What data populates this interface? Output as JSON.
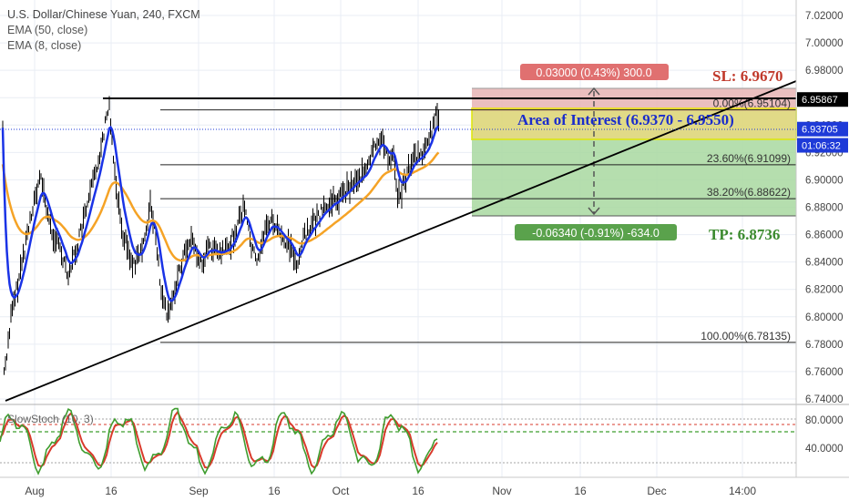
{
  "header": {
    "symbol_line": "U.S. Dollar/Chinese Yuan, 240, FXCM",
    "indicator_1": "EMA (50, close)",
    "indicator_2": "EMA (8, close)"
  },
  "price_axis": {
    "labels": [
      "7.02000",
      "7.00000",
      "6.98000",
      "6.96000",
      "6.94000",
      "6.92000",
      "6.90000",
      "6.88000",
      "6.86000",
      "6.84000",
      "6.82000",
      "6.80000",
      "6.78000",
      "6.76000",
      "6.74000"
    ],
    "values": [
      7.02,
      7.0,
      6.98,
      6.96,
      6.94,
      6.92,
      6.9,
      6.88,
      6.86,
      6.84,
      6.82,
      6.8,
      6.78,
      6.76,
      6.74
    ],
    "tags": [
      {
        "text": "6.95867",
        "value": 6.95867,
        "bg": "#000000",
        "color": "#ffffff"
      },
      {
        "text": "6.93705",
        "value": 6.93705,
        "bg": "#1e3ad8",
        "color": "#ffffff"
      },
      {
        "text": "01:06:32",
        "value": 6.9252,
        "bg": "#1e3ad8",
        "color": "#ffffff"
      }
    ]
  },
  "stoch_axis": {
    "labels": [
      "80.0000",
      "40.0000"
    ],
    "values": [
      80,
      40
    ]
  },
  "time_axis": {
    "labels": [
      "Aug",
      "16",
      "Sep",
      "16",
      "Oct",
      "16",
      "Nov",
      "16",
      "Dec",
      "14:00"
    ],
    "x": [
      38,
      122,
      218,
      301,
      374,
      459,
      551,
      637,
      721,
      815
    ]
  },
  "annotations": {
    "sl_label": "SL: 6.9670",
    "tp_label": "TP: 6.8736",
    "area_label": "Area of Interest (6.9370 - 6.9550)",
    "risk_box_label": "0.03000 (0.43%) 300.0",
    "reward_box_label": "-0.06340 (-0.91%) -634.0",
    "stoch_label": "SlowStoch (10, 3)"
  },
  "fib_levels": [
    {
      "label": "0.00%(6.95104)",
      "value": 6.95104
    },
    {
      "label": "23.60%(6.91099)",
      "value": 6.91099
    },
    {
      "label": "38.20%(6.88622)",
      "value": 6.88622
    },
    {
      "label": "100.00%(6.78135)",
      "value": 6.78135
    }
  ],
  "colors": {
    "candles": "#000000",
    "ema_fast": "#1a33e6",
    "ema_slow": "#f5a326",
    "sl_text": "#c0392b",
    "tp_text": "#3b8a2e",
    "area_text": "#1a2ccc",
    "risk_zone": "#e8b4b4",
    "reward_zone": "#a8d8a0",
    "area_zone": "#f0d97a",
    "stoch_k": "#3f9d2f",
    "stoch_d": "#d93a2b",
    "grid": "#e9eef4"
  },
  "chart_data": {
    "type": "line",
    "title": "U.S. Dollar/Chinese Yuan, 240, FXCM",
    "ylim": [
      6.735,
      7.03
    ],
    "series": [
      {
        "name": "EMA (8, close)",
        "x": [
          "Aug 1",
          "Aug 16",
          "Aug 22",
          "Sep 1",
          "Sep 16",
          "Sep 24",
          "Oct 1",
          "Oct 8",
          "Oct 12",
          "Oct 16",
          "Oct 20"
        ],
        "values": [
          6.76,
          6.875,
          6.81,
          6.838,
          6.868,
          6.848,
          6.872,
          6.902,
          6.918,
          6.905,
          6.935
        ]
      },
      {
        "name": "EMA (50, close)",
        "x": [
          "Aug 1",
          "Aug 16",
          "Aug 22",
          "Sep 1",
          "Sep 16",
          "Sep 24",
          "Oct 1",
          "Oct 8",
          "Oct 12",
          "Oct 16",
          "Oct 20"
        ],
        "values": [
          6.77,
          6.873,
          6.85,
          6.84,
          6.853,
          6.855,
          6.868,
          6.885,
          6.905,
          6.912,
          6.92
        ]
      }
    ]
  }
}
